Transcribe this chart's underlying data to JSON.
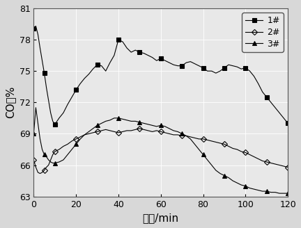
{
  "title": "",
  "xlabel": "时间/min",
  "ylabel": "CO／%",
  "xlim": [
    0,
    120
  ],
  "ylim": [
    63,
    81
  ],
  "yticks": [
    63,
    66,
    69,
    72,
    75,
    78,
    81
  ],
  "xticks": [
    0,
    20,
    40,
    60,
    80,
    100,
    120
  ],
  "series": [
    {
      "label": "1#",
      "marker": "s",
      "color": "#000000",
      "fillstyle": "full",
      "x": [
        0,
        1,
        2,
        3,
        4,
        5,
        6,
        7,
        8,
        9,
        10,
        12,
        14,
        16,
        18,
        20,
        22,
        24,
        26,
        28,
        30,
        32,
        34,
        36,
        38,
        40,
        42,
        44,
        46,
        48,
        50,
        52,
        54,
        56,
        58,
        60,
        62,
        64,
        66,
        68,
        70,
        72,
        74,
        76,
        78,
        80,
        82,
        84,
        86,
        88,
        90,
        92,
        94,
        96,
        98,
        100,
        102,
        104,
        106,
        108,
        110,
        112,
        114,
        116,
        118,
        120
      ],
      "y": [
        79.1,
        79.3,
        78.5,
        77.2,
        76.0,
        74.8,
        73.4,
        72.2,
        71.0,
        70.2,
        69.9,
        70.5,
        71.0,
        71.8,
        72.5,
        73.2,
        73.8,
        74.3,
        74.7,
        75.2,
        75.6,
        75.5,
        75.0,
        75.8,
        76.5,
        78.0,
        77.8,
        77.2,
        76.8,
        77.0,
        76.8,
        76.7,
        76.5,
        76.3,
        76.0,
        76.2,
        76.0,
        75.8,
        75.6,
        75.5,
        75.5,
        75.8,
        75.9,
        75.7,
        75.5,
        75.3,
        75.0,
        75.0,
        74.8,
        75.0,
        75.3,
        75.6,
        75.5,
        75.4,
        75.2,
        75.3,
        75.0,
        74.5,
        73.8,
        73.0,
        72.5,
        72.0,
        71.5,
        71.0,
        70.5,
        70.0
      ]
    },
    {
      "label": "2#",
      "marker": "D",
      "color": "#000000",
      "fillstyle": "none",
      "x": [
        0,
        1,
        2,
        3,
        4,
        5,
        6,
        7,
        8,
        9,
        10,
        12,
        14,
        16,
        18,
        20,
        22,
        24,
        26,
        28,
        30,
        32,
        34,
        36,
        38,
        40,
        42,
        44,
        46,
        48,
        50,
        52,
        54,
        56,
        58,
        60,
        62,
        64,
        66,
        68,
        70,
        72,
        74,
        76,
        78,
        80,
        82,
        84,
        86,
        88,
        90,
        92,
        94,
        96,
        98,
        100,
        102,
        104,
        106,
        108,
        110,
        112,
        114,
        116,
        118,
        120
      ],
      "y": [
        66.5,
        65.8,
        65.3,
        65.2,
        65.3,
        65.5,
        65.8,
        66.0,
        66.5,
        67.0,
        67.3,
        67.5,
        67.8,
        68.0,
        68.3,
        68.5,
        68.7,
        68.9,
        69.0,
        69.1,
        69.2,
        69.3,
        69.4,
        69.3,
        69.2,
        69.1,
        69.2,
        69.3,
        69.3,
        69.4,
        69.5,
        69.4,
        69.3,
        69.2,
        69.3,
        69.2,
        69.1,
        69.0,
        68.9,
        68.9,
        68.8,
        68.8,
        68.7,
        68.6,
        68.5,
        68.5,
        68.4,
        68.3,
        68.2,
        68.1,
        68.0,
        67.8,
        67.6,
        67.5,
        67.3,
        67.2,
        67.0,
        66.8,
        66.6,
        66.4,
        66.3,
        66.2,
        66.1,
        66.0,
        65.9,
        65.8
      ]
    },
    {
      "label": "3#",
      "marker": "^",
      "color": "#000000",
      "fillstyle": "full",
      "x": [
        0,
        1,
        2,
        3,
        4,
        5,
        6,
        7,
        8,
        9,
        10,
        12,
        14,
        16,
        18,
        20,
        22,
        24,
        26,
        28,
        30,
        32,
        34,
        36,
        38,
        40,
        42,
        44,
        46,
        48,
        50,
        52,
        54,
        56,
        58,
        60,
        62,
        64,
        66,
        68,
        70,
        72,
        74,
        76,
        78,
        80,
        82,
        84,
        86,
        88,
        90,
        92,
        94,
        96,
        98,
        100,
        102,
        104,
        106,
        108,
        110,
        112,
        114,
        116,
        118,
        120
      ],
      "y": [
        69.0,
        71.5,
        70.0,
        68.5,
        67.5,
        67.0,
        66.8,
        66.5,
        66.3,
        66.2,
        66.2,
        66.3,
        66.5,
        67.0,
        67.5,
        68.0,
        68.5,
        68.9,
        69.2,
        69.5,
        69.8,
        70.0,
        70.2,
        70.3,
        70.5,
        70.5,
        70.4,
        70.3,
        70.2,
        70.2,
        70.1,
        70.0,
        69.9,
        69.8,
        69.7,
        69.8,
        69.7,
        69.5,
        69.3,
        69.2,
        69.0,
        68.8,
        68.5,
        68.0,
        67.5,
        67.0,
        66.5,
        66.0,
        65.5,
        65.2,
        65.0,
        64.8,
        64.5,
        64.3,
        64.1,
        64.0,
        63.8,
        63.7,
        63.6,
        63.5,
        63.5,
        63.4,
        63.4,
        63.3,
        63.3,
        63.3
      ]
    }
  ],
  "background_color": "#d8d8d8",
  "plot_bg_color": "#e8e8e8",
  "grid_color": "#ffffff",
  "font_size": 11,
  "marker_size": 4,
  "marker_every": 5
}
